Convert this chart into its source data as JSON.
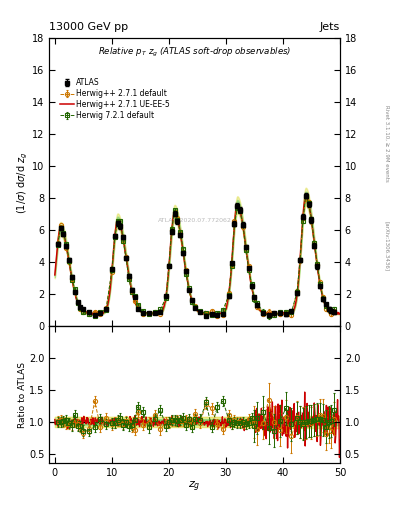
{
  "title_top": "13000 GeV pp",
  "title_right": "Jets",
  "plot_title": "Relative $p_T$ $z_g$ (ATLAS soft-drop observables)",
  "ylabel_main": "(1/σ) dσ/d z_g",
  "ylabel_ratio": "Ratio to ATLAS",
  "xlabel": "$z_g$",
  "right_label1": "Rivet 3.1.10, ≥ 2.9M events",
  "right_label2": "[arXiv:1306.3436]",
  "watermark": "ATLAS_2020.07.772062",
  "ylim_main": [
    0,
    18
  ],
  "ylim_ratio": [
    0.35,
    2.5
  ],
  "yticks_main": [
    0,
    2,
    4,
    6,
    8,
    10,
    12,
    14,
    16,
    18
  ],
  "yticks_ratio": [
    0.5,
    1.0,
    1.5,
    2.0
  ],
  "xlim": [
    -1,
    50
  ],
  "xticks": [
    0,
    10,
    20,
    30,
    40,
    50
  ],
  "background_color": "#ffffff",
  "legend_entries": [
    "ATLAS",
    "Herwig++ 2.7.1 default",
    "Herwig++ 2.7.1 UE-EE-5",
    "Herwig 7.2.1 default"
  ],
  "atlas_color": "#000000",
  "herwig271_default_color": "#cc7700",
  "herwig271_ueee5_color": "#cc0000",
  "herwig721_default_color": "#226600",
  "band_color_inner": "#66cc66",
  "band_color_outer": "#dddd44"
}
